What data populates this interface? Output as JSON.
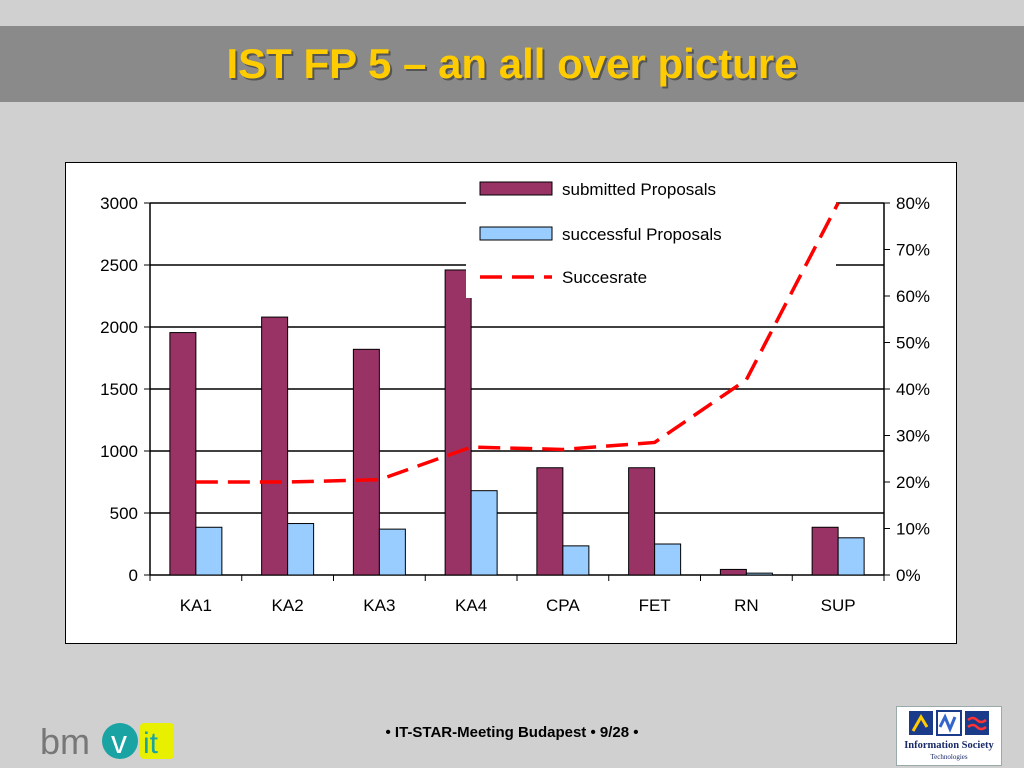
{
  "slide": {
    "title": "IST FP 5 – an all over picture",
    "footer": "• IT-STAR-Meeting Budapest • 9/28 •"
  },
  "logos": {
    "left_text": "bmvit",
    "right_text": "Information Society",
    "right_subtext": "Technologies",
    "right_icon": "ist-logo-icon"
  },
  "colors": {
    "submitted": "#993366",
    "successful": "#99ccff",
    "rate": "#ff0000",
    "title": "#ffcc00",
    "title_band": "#8a8a8a",
    "background": "#d0d0d0"
  },
  "chart_data": {
    "type": "bar",
    "categories": [
      "KA1",
      "KA2",
      "KA3",
      "KA4",
      "CPA",
      "FET",
      "RN",
      "SUP"
    ],
    "series": [
      {
        "name": "submitted Proposals",
        "type": "bar",
        "axis": "left",
        "values": [
          1955,
          2080,
          1820,
          2460,
          865,
          865,
          45,
          385
        ]
      },
      {
        "name": "successful Proposals",
        "type": "bar",
        "axis": "left",
        "values": [
          385,
          415,
          370,
          680,
          235,
          250,
          15,
          300
        ]
      },
      {
        "name": "Succesrate",
        "type": "line",
        "axis": "right",
        "style": "dashed",
        "values": [
          0.2,
          0.2,
          0.205,
          0.275,
          0.27,
          0.285,
          0.42,
          0.8
        ]
      }
    ],
    "ylim": [
      0,
      3000
    ],
    "yticks": [
      "0",
      "500",
      "1000",
      "1500",
      "2000",
      "2500",
      "3000"
    ],
    "y2lim": [
      0,
      0.8
    ],
    "y2ticks": [
      "0%",
      "10%",
      "20%",
      "30%",
      "40%",
      "50%",
      "60%",
      "70%",
      "80%"
    ],
    "grid": true,
    "legend": "top-right"
  }
}
